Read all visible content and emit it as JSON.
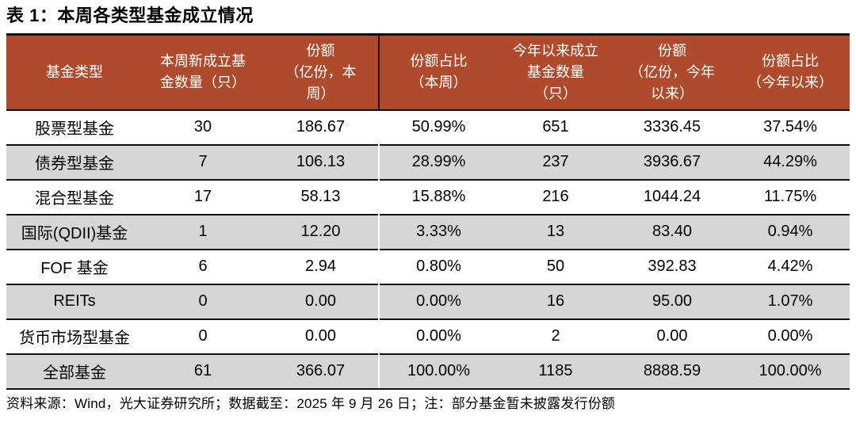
{
  "title": "表 1：本周各类型基金成立情况",
  "source_note": "资料来源：Wind，光大证券研究所；数据截至：2025 年 9 月 26 日；注：部分基金暂未披露发行份额",
  "colors": {
    "header_bg": "#B04A2C",
    "header_text": "#FFFFFF",
    "alt_row_bg": "#D6D6D6",
    "rule": "#000000"
  },
  "chart_data": {
    "type": "table",
    "title": "表 1：本周各类型基金成立情况",
    "columns": [
      "基金类型",
      "本周新成立基金数量（只）",
      "份额\n（亿份，本周）",
      "份额占比\n（本周）",
      "今年以来成立基金数量（只）",
      "份额\n（亿份，今年以来）",
      "份额占比\n（今年以来）"
    ],
    "rows": [
      [
        "股票型基金",
        "30",
        "186.67",
        "50.99%",
        "651",
        "3336.45",
        "37.54%"
      ],
      [
        "债券型基金",
        "7",
        "106.13",
        "28.99%",
        "237",
        "3936.67",
        "44.29%"
      ],
      [
        "混合型基金",
        "17",
        "58.13",
        "15.88%",
        "216",
        "1044.24",
        "11.75%"
      ],
      [
        "国际(QDII)基金",
        "1",
        "12.20",
        "3.33%",
        "13",
        "83.40",
        "0.94%"
      ],
      [
        "FOF 基金",
        "6",
        "2.94",
        "0.80%",
        "50",
        "392.83",
        "4.42%"
      ],
      [
        "REITs",
        "0",
        "0.00",
        "0.00%",
        "16",
        "95.00",
        "1.07%"
      ],
      [
        "货币市场型基金",
        "0",
        "0.00",
        "0.00%",
        "2",
        "0.00",
        "0.00%"
      ],
      [
        "全部基金",
        "61",
        "366.07",
        "100.00%",
        "1185",
        "8888.59",
        "100.00%"
      ]
    ],
    "column_groups": [
      "本周",
      "今年以来"
    ],
    "grid": "horizontal-rules",
    "alt_row_shading": true
  }
}
